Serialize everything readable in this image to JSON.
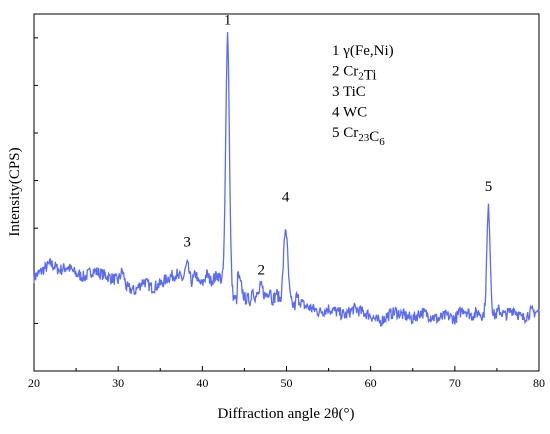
{
  "chart_data": {
    "type": "line",
    "title": "",
    "xlabel": "Diffraction angle 2θ(°)",
    "ylabel": "Intensity(CPS)",
    "xlim": [
      20,
      80
    ],
    "ylim": [
      0,
      1
    ],
    "y_ticks_labeled": false,
    "grid": false,
    "line_color": "#5b6cf0",
    "x_ticks": [
      "20",
      "30",
      "40",
      "50",
      "60",
      "70",
      "80"
    ],
    "baseline_points": [
      [
        20,
        0.27
      ],
      [
        21,
        0.29
      ],
      [
        22,
        0.31
      ],
      [
        23,
        0.29
      ],
      [
        24,
        0.3
      ],
      [
        25,
        0.28
      ],
      [
        26,
        0.27
      ],
      [
        27,
        0.29
      ],
      [
        28,
        0.28
      ],
      [
        29,
        0.27
      ],
      [
        30,
        0.26
      ],
      [
        30.5,
        0.29
      ],
      [
        31,
        0.24
      ],
      [
        32,
        0.23
      ],
      [
        33,
        0.26
      ],
      [
        34,
        0.24
      ],
      [
        35,
        0.25
      ],
      [
        36,
        0.27
      ],
      [
        37,
        0.28
      ],
      [
        38,
        0.32
      ],
      [
        38.5,
        0.28
      ],
      [
        39,
        0.26
      ],
      [
        40,
        0.25
      ],
      [
        40.5,
        0.28
      ],
      [
        41,
        0.26
      ],
      [
        42,
        0.28
      ],
      [
        43,
        0.97
      ],
      [
        44,
        0.3
      ],
      [
        45,
        0.21
      ],
      [
        46,
        0.2
      ],
      [
        47,
        0.25
      ],
      [
        48,
        0.2
      ],
      [
        49,
        0.22
      ],
      [
        50,
        0.45
      ],
      [
        50.5,
        0.3
      ],
      [
        51,
        0.22
      ],
      [
        52,
        0.19
      ],
      [
        53,
        0.18
      ],
      [
        54,
        0.17
      ],
      [
        55,
        0.18
      ],
      [
        56,
        0.17
      ],
      [
        57,
        0.16
      ],
      [
        58,
        0.18
      ],
      [
        59,
        0.17
      ],
      [
        60,
        0.16
      ],
      [
        61,
        0.14
      ],
      [
        62,
        0.16
      ],
      [
        63,
        0.17
      ],
      [
        64,
        0.16
      ],
      [
        65,
        0.15
      ],
      [
        66,
        0.17
      ],
      [
        67,
        0.16
      ],
      [
        68,
        0.15
      ],
      [
        69,
        0.16
      ],
      [
        70,
        0.15
      ],
      [
        71,
        0.18
      ],
      [
        72,
        0.16
      ],
      [
        73,
        0.17
      ],
      [
        74,
        0.49
      ],
      [
        74.5,
        0.3
      ],
      [
        75,
        0.18
      ],
      [
        76,
        0.16
      ],
      [
        77,
        0.18
      ],
      [
        78,
        0.15
      ],
      [
        79,
        0.17
      ],
      [
        80,
        0.17
      ]
    ],
    "peaks": [
      {
        "label": "1",
        "x": 43.0,
        "y": 0.97
      },
      {
        "label": "2",
        "x": 47.0,
        "y": 0.25
      },
      {
        "label": "3",
        "x": 38.2,
        "y": 0.33
      },
      {
        "label": "4",
        "x": 49.9,
        "y": 0.46
      },
      {
        "label": "5",
        "x": 74.0,
        "y": 0.49
      }
    ],
    "legend": {
      "placement": "top-right",
      "entries": [
        {
          "num": "1",
          "main": "γ(Fe,Ni)",
          "sub": "",
          "main2": "",
          "sub2": ""
        },
        {
          "num": "2",
          "main": "Cr",
          "sub": "2",
          "main2": "Ti",
          "sub2": ""
        },
        {
          "num": "3",
          "main": "TiC",
          "sub": "",
          "main2": "",
          "sub2": ""
        },
        {
          "num": "4",
          "main": "WC",
          "sub": "",
          "main2": "",
          "sub2": ""
        },
        {
          "num": "5",
          "main": "Cr",
          "sub": "23",
          "main2": "C",
          "sub2": "6"
        }
      ]
    }
  }
}
